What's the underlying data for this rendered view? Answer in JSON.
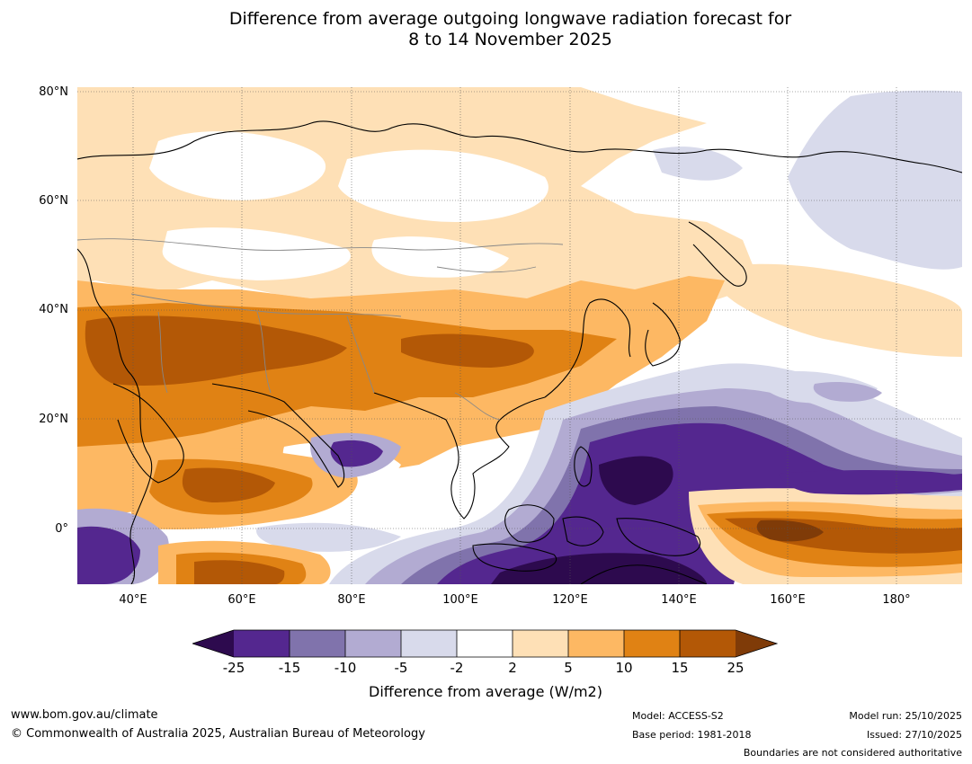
{
  "title": {
    "line1": "Difference from average outgoing longwave radiation forecast for",
    "line2": "8 to 14 November 2025"
  },
  "axes": {
    "lat_labels": [
      "80°N",
      "60°N",
      "40°N",
      "20°N",
      "0°"
    ],
    "lon_labels": [
      "40°E",
      "60°E",
      "80°E",
      "100°E",
      "120°E",
      "140°E",
      "160°E",
      "180°"
    ]
  },
  "legend": {
    "ticks": [
      "-25",
      "-15",
      "-10",
      "-5",
      "-2",
      "2",
      "5",
      "10",
      "15",
      "25"
    ],
    "colors": [
      "#2d0a4e",
      "#54278f",
      "#8073ac",
      "#b2abd2",
      "#d8daeb",
      "#ffffff",
      "#fee0b6",
      "#fdb863",
      "#e08214",
      "#b35806",
      "#7f3b08"
    ],
    "label": "Difference from average (W/m2)"
  },
  "footer": {
    "website": "www.bom.gov.au/climate",
    "copyright": "© Commonwealth of Australia 2025, Australian Bureau of Meteorology",
    "model": "Model: ACCESS-S2",
    "base_period": "Base period: 1981-2018",
    "model_run": "Model run: 25/10/2025",
    "issued": "Issued: 27/10/2025",
    "boundaries": "Boundaries are not considered authoritative"
  }
}
